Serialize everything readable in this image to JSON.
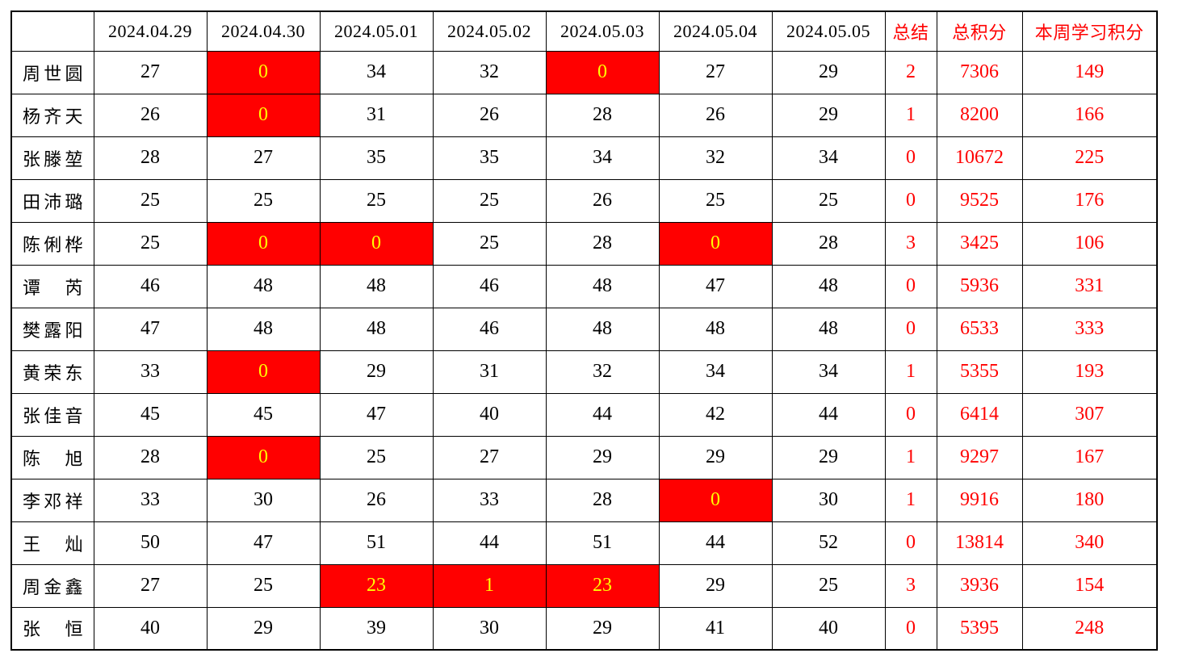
{
  "colors": {
    "highlight_background": "#ff0000",
    "highlight_text": "#ffff00",
    "summary_text": "#ff0000",
    "normal_text": "#000000",
    "grid_border": "#000000"
  },
  "table": {
    "columns": [
      "",
      "2024.04.29",
      "2024.04.30",
      "2024.05.01",
      "2024.05.02",
      "2024.05.03",
      "2024.05.04",
      "2024.05.05",
      "总结",
      "总积分",
      "本周学习积分"
    ],
    "rows": [
      {
        "name": "周世圆",
        "daily": [
          {
            "v": "27",
            "hl": false
          },
          {
            "v": "0",
            "hl": true
          },
          {
            "v": "34",
            "hl": false
          },
          {
            "v": "32",
            "hl": false
          },
          {
            "v": "0",
            "hl": true
          },
          {
            "v": "27",
            "hl": false
          },
          {
            "v": "29",
            "hl": false
          }
        ],
        "summary": "2",
        "total": "7306",
        "week": "149"
      },
      {
        "name": "杨齐天",
        "daily": [
          {
            "v": "26",
            "hl": false
          },
          {
            "v": "0",
            "hl": true
          },
          {
            "v": "31",
            "hl": false
          },
          {
            "v": "26",
            "hl": false
          },
          {
            "v": "28",
            "hl": false
          },
          {
            "v": "26",
            "hl": false
          },
          {
            "v": "29",
            "hl": false
          }
        ],
        "summary": "1",
        "total": "8200",
        "week": "166"
      },
      {
        "name": "张滕堃",
        "daily": [
          {
            "v": "28",
            "hl": false
          },
          {
            "v": "27",
            "hl": false
          },
          {
            "v": "35",
            "hl": false
          },
          {
            "v": "35",
            "hl": false
          },
          {
            "v": "34",
            "hl": false
          },
          {
            "v": "32",
            "hl": false
          },
          {
            "v": "34",
            "hl": false
          }
        ],
        "summary": "0",
        "total": "10672",
        "week": "225"
      },
      {
        "name": "田沛璐",
        "daily": [
          {
            "v": "25",
            "hl": false
          },
          {
            "v": "25",
            "hl": false
          },
          {
            "v": "25",
            "hl": false
          },
          {
            "v": "25",
            "hl": false
          },
          {
            "v": "26",
            "hl": false
          },
          {
            "v": "25",
            "hl": false
          },
          {
            "v": "25",
            "hl": false
          }
        ],
        "summary": "0",
        "total": "9525",
        "week": "176"
      },
      {
        "name": "陈俐桦",
        "daily": [
          {
            "v": "25",
            "hl": false
          },
          {
            "v": "0",
            "hl": true
          },
          {
            "v": "0",
            "hl": true
          },
          {
            "v": "25",
            "hl": false
          },
          {
            "v": "28",
            "hl": false
          },
          {
            "v": "0",
            "hl": true
          },
          {
            "v": "28",
            "hl": false
          }
        ],
        "summary": "3",
        "total": "3425",
        "week": "106"
      },
      {
        "name": "谭芮",
        "daily": [
          {
            "v": "46",
            "hl": false
          },
          {
            "v": "48",
            "hl": false
          },
          {
            "v": "48",
            "hl": false
          },
          {
            "v": "46",
            "hl": false
          },
          {
            "v": "48",
            "hl": false
          },
          {
            "v": "47",
            "hl": false
          },
          {
            "v": "48",
            "hl": false
          }
        ],
        "summary": "0",
        "total": "5936",
        "week": "331"
      },
      {
        "name": "樊露阳",
        "daily": [
          {
            "v": "47",
            "hl": false
          },
          {
            "v": "48",
            "hl": false
          },
          {
            "v": "48",
            "hl": false
          },
          {
            "v": "46",
            "hl": false
          },
          {
            "v": "48",
            "hl": false
          },
          {
            "v": "48",
            "hl": false
          },
          {
            "v": "48",
            "hl": false
          }
        ],
        "summary": "0",
        "total": "6533",
        "week": "333"
      },
      {
        "name": "黄荣东",
        "daily": [
          {
            "v": "33",
            "hl": false
          },
          {
            "v": "0",
            "hl": true
          },
          {
            "v": "29",
            "hl": false
          },
          {
            "v": "31",
            "hl": false
          },
          {
            "v": "32",
            "hl": false
          },
          {
            "v": "34",
            "hl": false
          },
          {
            "v": "34",
            "hl": false
          }
        ],
        "summary": "1",
        "total": "5355",
        "week": "193"
      },
      {
        "name": "张佳音",
        "daily": [
          {
            "v": "45",
            "hl": false
          },
          {
            "v": "45",
            "hl": false
          },
          {
            "v": "47",
            "hl": false
          },
          {
            "v": "40",
            "hl": false
          },
          {
            "v": "44",
            "hl": false
          },
          {
            "v": "42",
            "hl": false
          },
          {
            "v": "44",
            "hl": false
          }
        ],
        "summary": "0",
        "total": "6414",
        "week": "307"
      },
      {
        "name": "陈旭",
        "daily": [
          {
            "v": "28",
            "hl": false
          },
          {
            "v": "0",
            "hl": true
          },
          {
            "v": "25",
            "hl": false
          },
          {
            "v": "27",
            "hl": false
          },
          {
            "v": "29",
            "hl": false
          },
          {
            "v": "29",
            "hl": false
          },
          {
            "v": "29",
            "hl": false
          }
        ],
        "summary": "1",
        "total": "9297",
        "week": "167"
      },
      {
        "name": "李邓祥",
        "daily": [
          {
            "v": "33",
            "hl": false
          },
          {
            "v": "30",
            "hl": false
          },
          {
            "v": "26",
            "hl": false
          },
          {
            "v": "33",
            "hl": false
          },
          {
            "v": "28",
            "hl": false
          },
          {
            "v": "0",
            "hl": true
          },
          {
            "v": "30",
            "hl": false
          }
        ],
        "summary": "1",
        "total": "9916",
        "week": "180"
      },
      {
        "name": "王灿",
        "daily": [
          {
            "v": "50",
            "hl": false
          },
          {
            "v": "47",
            "hl": false
          },
          {
            "v": "51",
            "hl": false
          },
          {
            "v": "44",
            "hl": false
          },
          {
            "v": "51",
            "hl": false
          },
          {
            "v": "44",
            "hl": false
          },
          {
            "v": "52",
            "hl": false
          }
        ],
        "summary": "0",
        "total": "13814",
        "week": "340"
      },
      {
        "name": "周金鑫",
        "daily": [
          {
            "v": "27",
            "hl": false
          },
          {
            "v": "25",
            "hl": false
          },
          {
            "v": "23",
            "hl": true
          },
          {
            "v": "1",
            "hl": true
          },
          {
            "v": "23",
            "hl": true
          },
          {
            "v": "29",
            "hl": false
          },
          {
            "v": "25",
            "hl": false
          }
        ],
        "summary": "3",
        "total": "3936",
        "week": "154"
      },
      {
        "name": "张恒",
        "daily": [
          {
            "v": "40",
            "hl": false
          },
          {
            "v": "29",
            "hl": false
          },
          {
            "v": "39",
            "hl": false
          },
          {
            "v": "30",
            "hl": false
          },
          {
            "v": "29",
            "hl": false
          },
          {
            "v": "41",
            "hl": false
          },
          {
            "v": "40",
            "hl": false
          }
        ],
        "summary": "0",
        "total": "5395",
        "week": "248"
      }
    ]
  }
}
